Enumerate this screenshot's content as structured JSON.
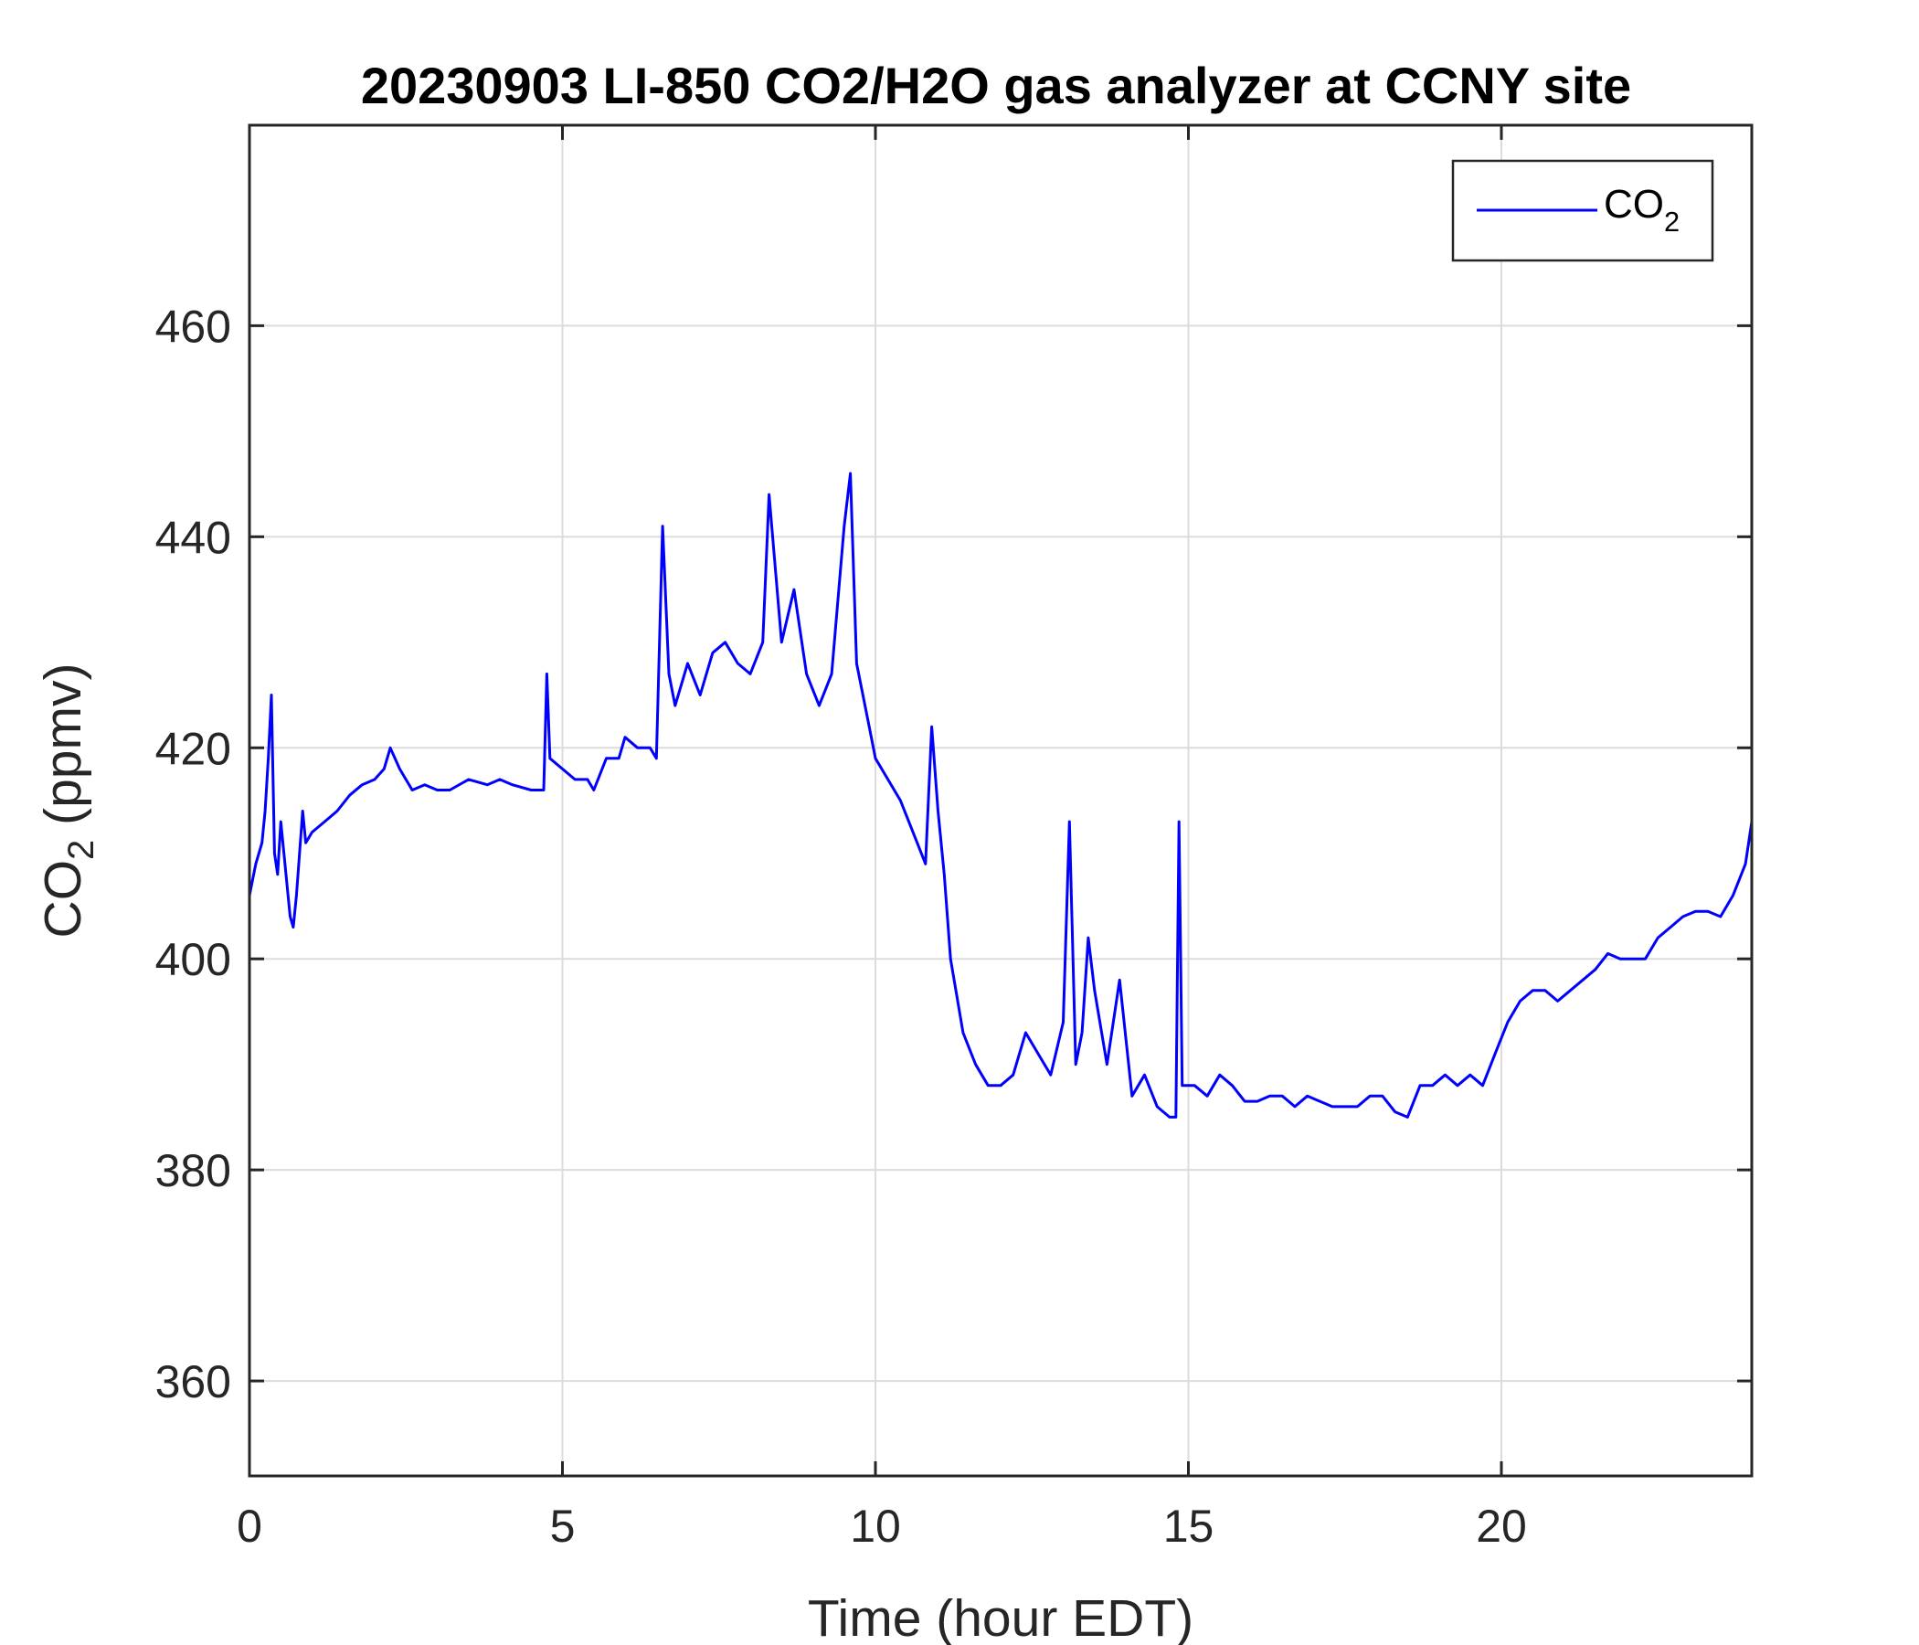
{
  "chart_data": {
    "type": "line",
    "title": "20230903 LI-850 CO2/H2O gas analyzer at CCNY site",
    "xlabel": "Time (hour EDT)",
    "ylabel": {
      "main": "CO",
      "sub": "2",
      "rest": " (ppmv)"
    },
    "xlim": [
      0,
      24
    ],
    "ylim": [
      351,
      479
    ],
    "xticks": [
      0,
      5,
      10,
      15,
      20
    ],
    "yticks": [
      360,
      380,
      400,
      420,
      440,
      460
    ],
    "grid": true,
    "legend_position": "top-right",
    "series": [
      {
        "name": {
          "main": "CO",
          "sub": "2"
        },
        "color": "#0000ff",
        "x": [
          0,
          0.1,
          0.2,
          0.25,
          0.3,
          0.35,
          0.4,
          0.45,
          0.5,
          0.55,
          0.6,
          0.65,
          0.7,
          0.75,
          0.8,
          0.85,
          0.9,
          1.0,
          1.2,
          1.4,
          1.6,
          1.8,
          2.0,
          2.15,
          2.25,
          2.4,
          2.6,
          2.8,
          3.0,
          3.2,
          3.5,
          3.8,
          4.0,
          4.2,
          4.5,
          4.7,
          4.75,
          4.8,
          5.0,
          5.2,
          5.4,
          5.5,
          5.7,
          5.9,
          6.0,
          6.2,
          6.4,
          6.5,
          6.6,
          6.7,
          6.8,
          7.0,
          7.2,
          7.4,
          7.6,
          7.8,
          8.0,
          8.2,
          8.3,
          8.5,
          8.7,
          8.9,
          9.1,
          9.3,
          9.5,
          9.6,
          9.7,
          9.9,
          10.0,
          10.2,
          10.4,
          10.6,
          10.8,
          10.9,
          11.0,
          11.1,
          11.2,
          11.4,
          11.6,
          11.8,
          12.0,
          12.2,
          12.4,
          12.6,
          12.8,
          13.0,
          13.1,
          13.2,
          13.3,
          13.4,
          13.5,
          13.7,
          13.9,
          14.1,
          14.3,
          14.5,
          14.7,
          14.8,
          14.85,
          14.9,
          15.1,
          15.3,
          15.5,
          15.7,
          15.9,
          16.1,
          16.3,
          16.5,
          16.7,
          16.9,
          17.1,
          17.3,
          17.5,
          17.7,
          17.9,
          18.1,
          18.3,
          18.5,
          18.7,
          18.9,
          19.1,
          19.3,
          19.5,
          19.7,
          19.9,
          20.1,
          20.3,
          20.5,
          20.7,
          20.9,
          21.1,
          21.3,
          21.5,
          21.7,
          21.9,
          22.1,
          22.3,
          22.5,
          22.7,
          22.9,
          23.1,
          23.3,
          23.5,
          23.7,
          23.9,
          24.0
        ],
        "y": [
          406,
          409,
          411,
          414,
          419,
          425,
          410,
          408,
          413,
          410,
          407,
          404,
          403,
          406,
          410,
          414,
          411,
          412,
          413,
          414,
          415.5,
          416.5,
          417,
          418,
          420,
          418,
          416,
          416.5,
          416,
          416,
          417,
          416.5,
          417,
          416.5,
          416,
          416,
          427,
          419,
          418,
          417,
          417,
          416,
          419,
          419,
          421,
          420,
          420,
          419,
          441,
          427,
          424,
          428,
          425,
          429,
          430,
          428,
          427,
          430,
          444,
          430,
          435,
          427,
          424,
          427,
          441,
          446,
          428,
          422,
          419,
          417,
          415,
          412,
          409,
          422,
          414,
          408,
          400,
          393,
          390,
          388,
          388,
          389,
          393,
          391,
          389,
          394,
          413,
          390,
          393,
          402,
          397,
          390,
          398,
          387,
          389,
          386,
          385,
          385,
          413,
          388,
          388,
          387,
          389,
          388,
          386.5,
          386.5,
          387,
          387,
          386,
          387,
          386.5,
          386,
          386,
          386,
          387,
          387,
          385.5,
          385,
          388,
          388,
          389,
          388,
          389,
          388,
          391,
          394,
          396,
          397,
          397,
          396,
          397,
          398,
          399,
          400.5,
          400,
          400,
          400,
          402,
          403,
          404,
          404.5,
          404.5,
          404,
          406,
          409,
          413
        ]
      }
    ]
  }
}
